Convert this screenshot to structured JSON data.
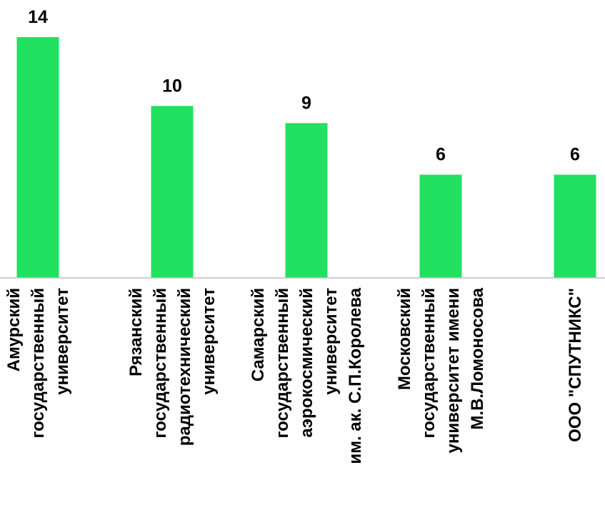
{
  "chart_data": {
    "type": "bar",
    "title": "",
    "xlabel": "",
    "ylabel": "",
    "ylim": [
      0,
      14
    ],
    "grid": false,
    "bar_color": "#22e160",
    "data_labels": [
      "14",
      "10",
      "9",
      "6",
      "6"
    ],
    "categories": [
      {
        "lines": [
          "Амурский",
          "государственный",
          "университет"
        ]
      },
      {
        "lines": [
          "Рязанский",
          "государственный",
          "радиотехнический",
          "университет"
        ]
      },
      {
        "lines": [
          "Самарский",
          "государственный",
          "аэрокосмический",
          "университет",
          "им. ак. С.П.Королева"
        ]
      },
      {
        "lines": [
          "Московский",
          "государственный",
          "университет имени",
          "М.В.Ломоносова"
        ]
      },
      {
        "lines": [
          "ООО \"СПУТНИКС\""
        ]
      }
    ],
    "values": [
      14,
      10,
      9,
      6,
      6
    ]
  }
}
